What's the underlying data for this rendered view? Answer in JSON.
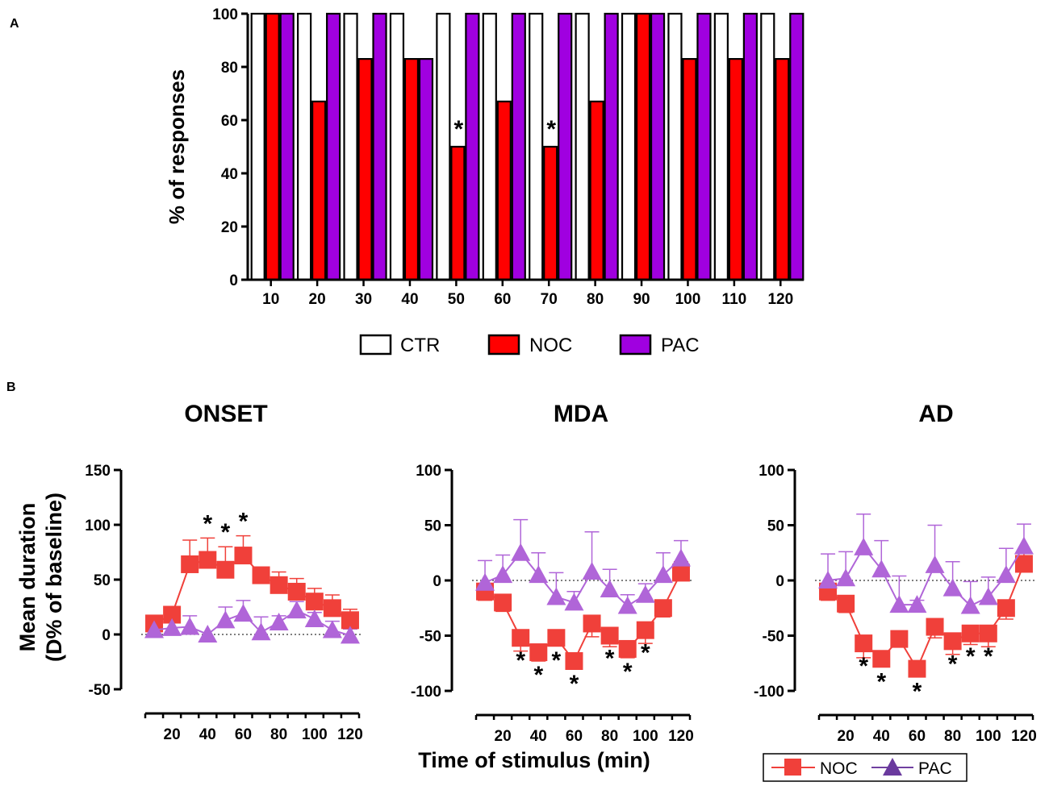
{
  "chart_data": [
    {
      "panel": "A",
      "type": "bar",
      "ylabel": "% of responses",
      "ylim": [
        0,
        100
      ],
      "yticks": [
        0,
        20,
        40,
        60,
        80,
        100
      ],
      "categories": [
        "10",
        "20",
        "30",
        "40",
        "50",
        "60",
        "70",
        "80",
        "90",
        "100",
        "110",
        "120"
      ],
      "series": [
        {
          "name": "CTR",
          "color": "#ffffff",
          "values": [
            100,
            100,
            100,
            100,
            100,
            100,
            100,
            100,
            100,
            100,
            100,
            100
          ]
        },
        {
          "name": "NOC",
          "color": "#ff0000",
          "values": [
            100,
            67,
            83,
            83,
            50,
            67,
            50,
            67,
            100,
            83,
            83,
            83
          ]
        },
        {
          "name": "PAC",
          "color": "#a000e0",
          "values": [
            100,
            100,
            100,
            83,
            100,
            100,
            100,
            100,
            100,
            100,
            100,
            100
          ]
        }
      ],
      "significant": [
        "50",
        "70"
      ],
      "annotation": "*"
    },
    {
      "panel": "B",
      "title": "ONSET",
      "type": "line",
      "ylabel": "Mean duration (D% of baseline)",
      "xlabel": "Time of stimulus (min)",
      "ylim": [
        -50,
        150
      ],
      "yticks": [
        -50,
        0,
        50,
        100,
        150
      ],
      "xlim": [
        5,
        125
      ],
      "xticks": [
        20,
        40,
        60,
        80,
        100,
        120
      ],
      "x": [
        10,
        20,
        30,
        40,
        50,
        60,
        70,
        80,
        90,
        100,
        110,
        120
      ],
      "series": [
        {
          "name": "NOC",
          "color": "#f0403a",
          "marker": "square",
          "values": [
            10,
            18,
            64,
            68,
            59,
            72,
            54,
            45,
            39,
            30,
            24,
            13
          ],
          "errors": [
            6,
            6,
            22,
            20,
            21,
            18,
            6,
            12,
            12,
            12,
            12,
            10
          ]
        },
        {
          "name": "PAC",
          "color": "#b065d8",
          "marker": "triangle",
          "values": [
            4,
            6,
            7,
            0,
            13,
            19,
            2,
            11,
            22,
            14,
            4,
            -1
          ],
          "errors": [
            5,
            5,
            10,
            0,
            12,
            12,
            14,
            6,
            8,
            6,
            8,
            6
          ]
        }
      ],
      "significant": [
        40,
        50,
        60
      ]
    },
    {
      "panel": "B",
      "title": "MDA",
      "type": "line",
      "ylim": [
        -100,
        100
      ],
      "yticks": [
        -100,
        -50,
        0,
        50,
        100
      ],
      "xlim": [
        5,
        125
      ],
      "xticks": [
        20,
        40,
        60,
        80,
        100,
        120
      ],
      "x": [
        10,
        20,
        30,
        40,
        50,
        60,
        70,
        80,
        90,
        100,
        110,
        120
      ],
      "series": [
        {
          "name": "NOC",
          "color": "#f0403a",
          "marker": "square",
          "values": [
            -10,
            -20,
            -52,
            -65,
            -52,
            -73,
            -39,
            -50,
            -62,
            -45,
            -25,
            7
          ],
          "errors": [
            8,
            8,
            12,
            8,
            6,
            6,
            12,
            10,
            8,
            12,
            8,
            10
          ]
        },
        {
          "name": "PAC",
          "color": "#b065d8",
          "marker": "triangle",
          "values": [
            -2,
            5,
            25,
            5,
            -15,
            -20,
            8,
            -8,
            -23,
            -13,
            5,
            20
          ],
          "errors": [
            20,
            18,
            30,
            20,
            22,
            10,
            36,
            18,
            10,
            10,
            20,
            16
          ]
        }
      ],
      "significant": [
        30,
        40,
        50,
        60,
        80,
        90,
        100
      ]
    },
    {
      "panel": "B",
      "title": "AD",
      "type": "line",
      "ylim": [
        -100,
        100
      ],
      "yticks": [
        -100,
        -50,
        0,
        50,
        100
      ],
      "xlim": [
        5,
        125
      ],
      "xticks": [
        20,
        40,
        60,
        80,
        100,
        120
      ],
      "x": [
        10,
        20,
        30,
        40,
        50,
        60,
        70,
        80,
        90,
        100,
        110,
        120
      ],
      "series": [
        {
          "name": "NOC",
          "color": "#f0403a",
          "marker": "square",
          "values": [
            -10,
            -21,
            -57,
            -71,
            -53,
            -80,
            -42,
            -55,
            -48,
            -48,
            -25,
            15
          ],
          "errors": [
            8,
            8,
            13,
            6,
            6,
            6,
            10,
            12,
            10,
            12,
            10,
            10
          ]
        },
        {
          "name": "PAC",
          "color": "#b065d8",
          "marker": "triangle",
          "values": [
            0,
            2,
            30,
            10,
            -22,
            -22,
            14,
            -7,
            -23,
            -15,
            5,
            31
          ],
          "errors": [
            24,
            24,
            30,
            26,
            26,
            4,
            36,
            24,
            22,
            18,
            24,
            20
          ]
        }
      ],
      "significant": [
        30,
        40,
        60,
        80,
        90,
        100
      ]
    }
  ],
  "labels": {
    "panel_a": "A",
    "panel_b": "B",
    "legend_a": [
      "CTR",
      "NOC",
      "PAC"
    ],
    "legend_b": [
      "NOC",
      "PAC"
    ],
    "b_ylabel_line1": "Mean duration",
    "b_ylabel_line2": "(D% of baseline)",
    "b_xlabel": "Time of stimulus (min)"
  }
}
